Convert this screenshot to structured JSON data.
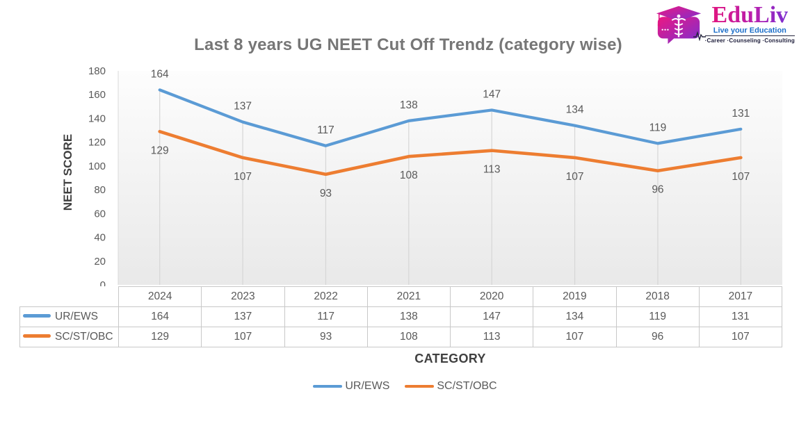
{
  "logo": {
    "brand": "EduLiv",
    "tagline": "Live your Education",
    "services": "·Career ·Counseling ·Consulting",
    "icon": "graduation-cap-caduceus-icon",
    "colors": {
      "magenta": "#e01580",
      "purple": "#7b2fd1",
      "tagline_blue": "#1d6fc9",
      "services_dark": "#1a1a38"
    }
  },
  "chart_data": {
    "type": "line",
    "title": "Last 8 years UG NEET Cut Off Trendz (category wise)",
    "categories": [
      "2024",
      "2023",
      "2022",
      "2021",
      "2020",
      "2019",
      "2018",
      "2017"
    ],
    "series": [
      {
        "name": "UR/EWS",
        "color": "#5B9BD5",
        "values": [
          164,
          137,
          117,
          138,
          147,
          134,
          119,
          131
        ]
      },
      {
        "name": "SC/ST/OBC",
        "color": "#ED7D31",
        "values": [
          129,
          107,
          93,
          108,
          113,
          107,
          96,
          107
        ]
      }
    ],
    "xlabel": "CATEGORY",
    "ylabel": "NEET SCORE",
    "ylim": [
      0,
      180
    ],
    "ytick_step": 20,
    "ytick_labels": [
      "0",
      "20",
      "40",
      "60",
      "80",
      "100",
      "120",
      "140",
      "160",
      "180"
    ],
    "grid": "vertical-drop-lines",
    "legend_position": "bottom",
    "data_table_shown": true,
    "colors": {
      "label_text": "#595959",
      "dropline": "#d6d6d6",
      "axis_line": "#d9d9d9",
      "plot_bg_top": "#fdfdfd",
      "plot_bg_bottom": "#e9e9e9",
      "table_border": "#c8c8c8",
      "title_text": "#767676",
      "axis_title_text": "#404040"
    }
  }
}
